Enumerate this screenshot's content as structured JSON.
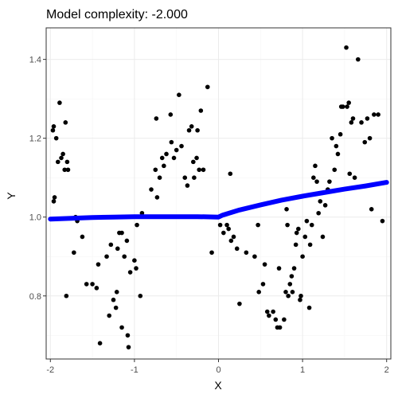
{
  "chart_data": {
    "type": "scatter",
    "title": "Model complexity: -2.000",
    "xlabel": "X",
    "ylabel": "Y",
    "xlim": [
      -2.05,
      2.05
    ],
    "ylim": [
      0.64,
      1.48
    ],
    "x_ticks": [
      -2,
      -1,
      0,
      1,
      2
    ],
    "x_tick_labels": [
      "-2",
      "-1",
      "0",
      "1",
      "2"
    ],
    "y_ticks": [
      0.8,
      1.0,
      1.2,
      1.4
    ],
    "y_tick_labels": [
      "0.8",
      "1.0",
      "1.2",
      "1.4"
    ],
    "grid": true,
    "legend": "none",
    "colors": {
      "points": "#000000",
      "fit_line": "#0000ff",
      "panel_border": "#333333"
    },
    "series": [
      {
        "type": "scatter",
        "points": [
          [
            -1.97,
            1.22
          ],
          [
            -1.96,
            1.23
          ],
          [
            -1.96,
            1.04
          ],
          [
            -1.95,
            1.05
          ],
          [
            -1.93,
            1.2
          ],
          [
            -1.91,
            1.14
          ],
          [
            -1.89,
            1.29
          ],
          [
            -1.87,
            1.15
          ],
          [
            -1.85,
            1.16
          ],
          [
            -1.83,
            1.12
          ],
          [
            -1.82,
            1.24
          ],
          [
            -1.8,
            1.14
          ],
          [
            -1.79,
            1.12
          ],
          [
            -1.81,
            0.8
          ],
          [
            -1.72,
            0.91
          ],
          [
            -1.7,
            1.0
          ],
          [
            -1.68,
            0.99
          ],
          [
            -1.62,
            0.95
          ],
          [
            -1.57,
            0.83
          ],
          [
            -1.5,
            0.83
          ],
          [
            -1.45,
            0.82
          ],
          [
            -1.43,
            0.88
          ],
          [
            -1.41,
            0.68
          ],
          [
            -1.33,
            0.9
          ],
          [
            -1.3,
            0.75
          ],
          [
            -1.28,
            0.93
          ],
          [
            -1.25,
            0.79
          ],
          [
            -1.22,
            0.77
          ],
          [
            -1.21,
            0.81
          ],
          [
            -1.2,
            0.92
          ],
          [
            -1.18,
            0.96
          ],
          [
            -1.15,
            0.96
          ],
          [
            -1.15,
            0.72
          ],
          [
            -1.12,
            0.9
          ],
          [
            -1.09,
            0.94
          ],
          [
            -1.08,
            0.7
          ],
          [
            -1.07,
            0.67
          ],
          [
            -1.05,
            0.86
          ],
          [
            -1.0,
            0.89
          ],
          [
            -0.98,
            0.87
          ],
          [
            -0.97,
            0.98
          ],
          [
            -0.93,
            0.8
          ],
          [
            -0.91,
            1.01
          ],
          [
            -0.8,
            1.07
          ],
          [
            -0.75,
            1.12
          ],
          [
            -0.74,
            1.25
          ],
          [
            -0.73,
            1.05
          ],
          [
            -0.7,
            1.1
          ],
          [
            -0.67,
            1.15
          ],
          [
            -0.65,
            1.13
          ],
          [
            -0.62,
            1.16
          ],
          [
            -0.57,
            1.26
          ],
          [
            -0.56,
            1.19
          ],
          [
            -0.53,
            1.15
          ],
          [
            -0.5,
            1.17
          ],
          [
            -0.47,
            1.31
          ],
          [
            -0.44,
            1.18
          ],
          [
            -0.4,
            1.1
          ],
          [
            -0.37,
            1.08
          ],
          [
            -0.35,
            1.22
          ],
          [
            -0.32,
            1.23
          ],
          [
            -0.3,
            1.14
          ],
          [
            -0.29,
            1.1
          ],
          [
            -0.26,
            1.15
          ],
          [
            -0.25,
            1.22
          ],
          [
            -0.23,
            1.12
          ],
          [
            -0.21,
            1.27
          ],
          [
            -0.18,
            1.12
          ],
          [
            -0.13,
            1.33
          ],
          [
            -0.08,
            0.91
          ],
          [
            0.02,
            0.98
          ],
          [
            0.06,
            0.96
          ],
          [
            0.1,
            0.98
          ],
          [
            0.12,
            0.97
          ],
          [
            0.14,
            1.11
          ],
          [
            0.15,
            0.94
          ],
          [
            0.18,
            0.95
          ],
          [
            0.22,
            0.92
          ],
          [
            0.25,
            0.78
          ],
          [
            0.33,
            0.91
          ],
          [
            0.43,
            0.9
          ],
          [
            0.47,
            0.98
          ],
          [
            0.48,
            0.81
          ],
          [
            0.53,
            0.83
          ],
          [
            0.55,
            0.88
          ],
          [
            0.58,
            0.76
          ],
          [
            0.6,
            0.75
          ],
          [
            0.65,
            0.76
          ],
          [
            0.68,
            0.74
          ],
          [
            0.7,
            0.72
          ],
          [
            0.72,
            0.87
          ],
          [
            0.73,
            0.72
          ],
          [
            0.78,
            0.74
          ],
          [
            0.8,
            0.81
          ],
          [
            0.81,
            1.02
          ],
          [
            0.82,
            0.98
          ],
          [
            0.83,
            0.8
          ],
          [
            0.85,
            0.83
          ],
          [
            0.87,
            0.85
          ],
          [
            0.88,
            0.81
          ],
          [
            0.9,
            0.87
          ],
          [
            0.92,
            0.93
          ],
          [
            0.93,
            0.96
          ],
          [
            0.95,
            0.97
          ],
          [
            0.97,
            0.79
          ],
          [
            0.98,
            0.8
          ],
          [
            1.0,
            0.9
          ],
          [
            1.03,
            0.95
          ],
          [
            1.05,
            0.99
          ],
          [
            1.08,
            0.77
          ],
          [
            1.09,
            0.93
          ],
          [
            1.11,
            0.98
          ],
          [
            1.13,
            1.1
          ],
          [
            1.15,
            1.13
          ],
          [
            1.17,
            1.09
          ],
          [
            1.19,
            1.01
          ],
          [
            1.21,
            1.04
          ],
          [
            1.24,
            0.95
          ],
          [
            1.27,
            1.03
          ],
          [
            1.3,
            1.07
          ],
          [
            1.32,
            1.09
          ],
          [
            1.35,
            1.2
          ],
          [
            1.38,
            1.12
          ],
          [
            1.4,
            1.18
          ],
          [
            1.42,
            1.16
          ],
          [
            1.45,
            1.21
          ],
          [
            1.46,
            1.28
          ],
          [
            1.48,
            1.28
          ],
          [
            1.52,
            1.43
          ],
          [
            1.53,
            1.28
          ],
          [
            1.55,
            1.29
          ],
          [
            1.56,
            1.11
          ],
          [
            1.58,
            1.24
          ],
          [
            1.6,
            1.25
          ],
          [
            1.62,
            1.1
          ],
          [
            1.66,
            1.4
          ],
          [
            1.7,
            1.24
          ],
          [
            1.74,
            1.19
          ],
          [
            1.77,
            1.25
          ],
          [
            1.8,
            1.2
          ],
          [
            1.82,
            1.02
          ],
          [
            1.85,
            1.26
          ],
          [
            1.9,
            1.26
          ],
          [
            1.95,
            0.99
          ]
        ]
      },
      {
        "type": "line",
        "x": [
          -2.0,
          -1.75,
          -1.5,
          -1.25,
          -1.0,
          -0.75,
          -0.5,
          -0.25,
          0.0,
          0.05,
          0.25,
          0.5,
          0.75,
          1.0,
          1.25,
          1.5,
          1.75,
          2.0
        ],
        "y": [
          0.995,
          0.997,
          0.999,
          1.0,
          1.001,
          1.001,
          1.001,
          1.001,
          1.0,
          1.005,
          1.018,
          1.031,
          1.043,
          1.053,
          1.062,
          1.071,
          1.079,
          1.088
        ]
      }
    ]
  }
}
